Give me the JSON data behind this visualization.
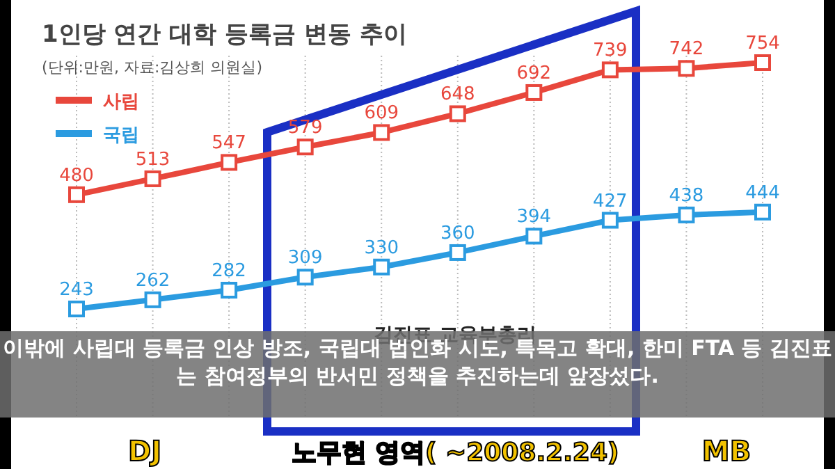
{
  "chart_data": {
    "type": "line",
    "title": "1인당 연간 대학 등록금 변동 추이",
    "subtitle": "(단위:만원, 자료:김상희 의원실)",
    "categories": [
      null,
      null,
      null,
      null,
      null,
      null,
      null,
      null,
      null,
      null
    ],
    "series": [
      {
        "name": "사립",
        "color": "#e8473c",
        "values": [
          480,
          513,
          547,
          579,
          609,
          648,
          692,
          739,
          742,
          754
        ]
      },
      {
        "name": "국립",
        "color": "#2b9be0",
        "values": [
          243,
          262,
          282,
          309,
          330,
          360,
          394,
          427,
          438,
          444
        ]
      }
    ],
    "data_labels": true,
    "marker": "square",
    "line_style": "solid",
    "grid": "x",
    "legend": "top left",
    "annotations": [
      "김진표 교육부총리",
      "DJ",
      "노무현 영역( ~2008.2.24)",
      "MB",
      "이밖에 사립대 등록금 인상 방조, 국립대 법인화 시도, 특목고 확대, 한미 FTA 등 김진표는 참여정부의 반서민 정책을 추진하는데 앞장섰다."
    ]
  }
}
